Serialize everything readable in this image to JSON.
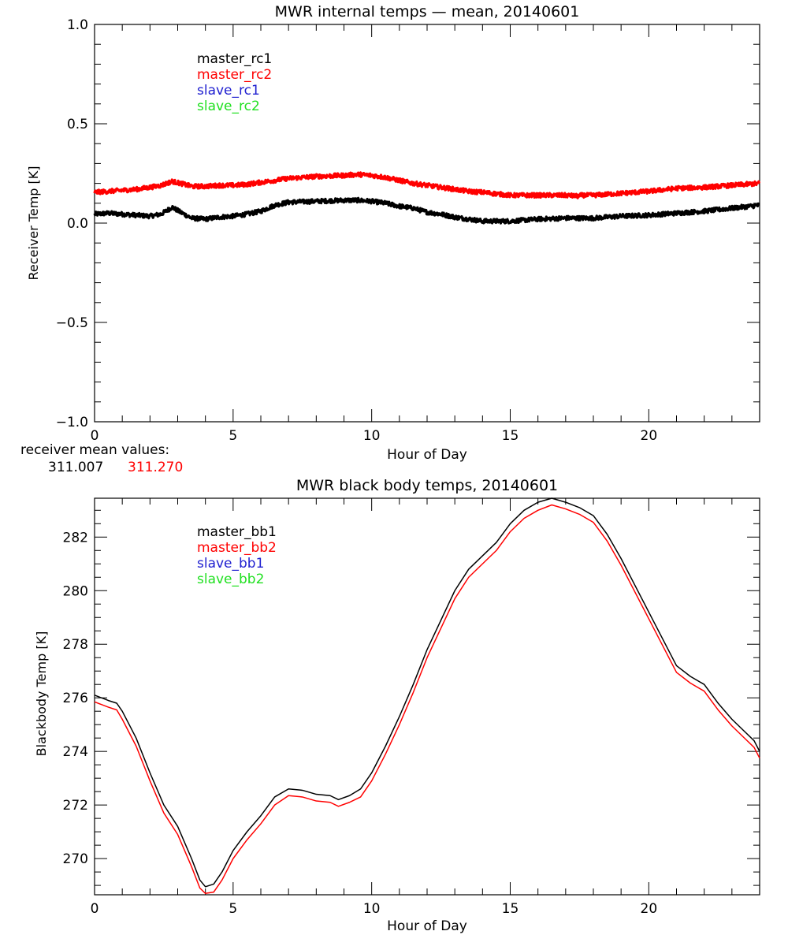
{
  "colors": {
    "black": "#000000",
    "red": "#ff0000",
    "blue": "#2020d0",
    "green": "#20e020"
  },
  "receiver_mean": {
    "label": "receiver mean values:",
    "values": [
      {
        "text": "311.007",
        "color": "#000000"
      },
      {
        "text": "311.270",
        "color": "#ff0000"
      }
    ]
  },
  "chart_data": [
    {
      "type": "line",
      "title": "MWR internal temps — mean, 20140601",
      "xlabel": "Hour of Day",
      "ylabel": "Receiver Temp [K]",
      "xlim": [
        0,
        24
      ],
      "ylim": [
        -1.0,
        1.0
      ],
      "xticks": [
        0,
        5,
        10,
        15,
        20
      ],
      "xtick_labels": [
        "0",
        "5",
        "10",
        "15",
        "20"
      ],
      "x_minor_step": 1,
      "yticks": [
        -1.0,
        -0.5,
        0.0,
        0.5,
        1.0
      ],
      "ytick_labels": [
        "−1.0",
        "−0.5",
        "0.0",
        "0.5",
        "1.0"
      ],
      "y_minor_step": 0.1,
      "legend_position": "top-left",
      "grid": false,
      "noisy": true,
      "series": [
        {
          "name": "master_rc1",
          "color": "#000000",
          "x": [
            0,
            0.5,
            1,
            1.5,
            2,
            2.4,
            2.8,
            3.1,
            3.5,
            4,
            4.5,
            5,
            5.5,
            6,
            6.5,
            7,
            8,
            9,
            9.5,
            10,
            10.5,
            11,
            11.5,
            12,
            12.5,
            13,
            13.5,
            14,
            15,
            16,
            17,
            18,
            19,
            20,
            21,
            22,
            23,
            24
          ],
          "y": [
            0.045,
            0.05,
            0.045,
            0.04,
            0.035,
            0.045,
            0.08,
            0.055,
            0.025,
            0.02,
            0.03,
            0.035,
            0.045,
            0.06,
            0.09,
            0.105,
            0.11,
            0.115,
            0.115,
            0.11,
            0.1,
            0.085,
            0.075,
            0.055,
            0.045,
            0.03,
            0.02,
            0.01,
            0.01,
            0.02,
            0.025,
            0.025,
            0.035,
            0.04,
            0.05,
            0.06,
            0.075,
            0.09
          ]
        },
        {
          "name": "master_rc2",
          "color": "#ff0000",
          "x": [
            0,
            0.5,
            1,
            1.5,
            2,
            2.4,
            2.8,
            3.1,
            3.5,
            4,
            4.5,
            5,
            5.5,
            6,
            6.5,
            7,
            8,
            9,
            9.5,
            10,
            10.5,
            11,
            11.5,
            12,
            12.5,
            13,
            13.5,
            14,
            15,
            16,
            17,
            17.5,
            17.55,
            18,
            19,
            20,
            21,
            22,
            23,
            24
          ],
          "y": [
            0.155,
            0.16,
            0.165,
            0.17,
            0.18,
            0.19,
            0.21,
            0.2,
            0.185,
            0.185,
            0.19,
            0.19,
            0.195,
            0.205,
            0.215,
            0.225,
            0.235,
            0.24,
            0.245,
            0.24,
            0.23,
            0.215,
            0.2,
            0.19,
            0.18,
            0.17,
            0.16,
            0.155,
            0.14,
            0.14,
            0.14,
            0.135,
            0.14,
            0.14,
            0.15,
            0.16,
            0.175,
            0.18,
            0.19,
            0.2
          ]
        },
        {
          "name": "slave_rc1",
          "color": "#2020d0",
          "x": [],
          "y": []
        },
        {
          "name": "slave_rc2",
          "color": "#20e020",
          "x": [],
          "y": []
        }
      ]
    },
    {
      "type": "line",
      "title": "MWR black body temps, 20140601",
      "xlabel": "Hour of Day",
      "ylabel": "Blackbody Temp [K]",
      "xlim": [
        0,
        24
      ],
      "ylim": [
        268.65,
        283.45
      ],
      "xticks": [
        0,
        5,
        10,
        15,
        20
      ],
      "xtick_labels": [
        "0",
        "5",
        "10",
        "15",
        "20"
      ],
      "x_minor_step": 1,
      "yticks": [
        270,
        272,
        274,
        276,
        278,
        280,
        282
      ],
      "ytick_labels": [
        "270",
        "272",
        "274",
        "276",
        "278",
        "280",
        "282"
      ],
      "y_minor_step": 0.5,
      "legend_position": "top-left",
      "grid": false,
      "noisy": false,
      "series": [
        {
          "name": "master_bb1",
          "color": "#000000",
          "x": [
            0,
            0.5,
            0.8,
            1,
            1.5,
            2,
            2.5,
            3,
            3.5,
            3.8,
            4,
            4.3,
            4.6,
            5,
            5.5,
            6,
            6.5,
            7,
            7.5,
            8,
            8.5,
            8.8,
            9.2,
            9.6,
            10,
            10.5,
            11,
            11.5,
            12,
            12.5,
            13,
            13.5,
            14,
            14.5,
            15,
            15.5,
            16,
            16.5,
            17,
            17.5,
            18,
            18.5,
            19,
            19.5,
            20,
            20.5,
            21,
            21.5,
            22,
            22.5,
            23,
            23.5,
            23.8,
            24
          ],
          "y": [
            276.1,
            275.9,
            275.8,
            275.5,
            274.5,
            273.2,
            272.0,
            271.2,
            270.0,
            269.2,
            268.95,
            269.05,
            269.5,
            270.3,
            271.0,
            271.6,
            272.3,
            272.6,
            272.55,
            272.4,
            272.35,
            272.2,
            272.35,
            272.6,
            273.2,
            274.2,
            275.3,
            276.5,
            277.8,
            278.9,
            280.0,
            280.8,
            281.3,
            281.8,
            282.5,
            283.0,
            283.3,
            283.45,
            283.3,
            283.1,
            282.8,
            282.1,
            281.2,
            280.2,
            279.2,
            278.2,
            277.2,
            276.8,
            276.5,
            275.8,
            275.2,
            274.7,
            274.4,
            274.0
          ]
        },
        {
          "name": "master_bb2",
          "color": "#ff0000",
          "x": [
            0,
            0.5,
            0.8,
            1,
            1.5,
            2,
            2.5,
            3,
            3.5,
            3.8,
            4,
            4.3,
            4.6,
            5,
            5.5,
            6,
            6.5,
            7,
            7.5,
            8,
            8.5,
            8.8,
            9.2,
            9.6,
            10,
            10.5,
            11,
            11.5,
            12,
            12.5,
            13,
            13.5,
            14,
            14.5,
            15,
            15.5,
            16,
            16.5,
            17,
            17.5,
            18,
            18.5,
            19,
            19.5,
            20,
            20.5,
            21,
            21.5,
            22,
            22.5,
            23,
            23.5,
            23.8,
            24
          ],
          "y": [
            275.85,
            275.65,
            275.55,
            275.2,
            274.2,
            272.9,
            271.7,
            270.9,
            269.7,
            268.9,
            268.7,
            268.75,
            269.2,
            270.0,
            270.7,
            271.3,
            272.0,
            272.35,
            272.3,
            272.15,
            272.1,
            271.95,
            272.1,
            272.3,
            272.9,
            273.9,
            275.0,
            276.2,
            277.5,
            278.6,
            279.7,
            280.5,
            281.0,
            281.5,
            282.2,
            282.7,
            283.0,
            283.2,
            283.05,
            282.85,
            282.55,
            281.85,
            280.95,
            279.95,
            278.95,
            277.95,
            276.95,
            276.55,
            276.25,
            275.55,
            274.95,
            274.45,
            274.15,
            273.75
          ]
        },
        {
          "name": "slave_bb1",
          "color": "#2020d0",
          "x": [],
          "y": []
        },
        {
          "name": "slave_bb2",
          "color": "#20e020",
          "x": [],
          "y": []
        }
      ]
    }
  ]
}
